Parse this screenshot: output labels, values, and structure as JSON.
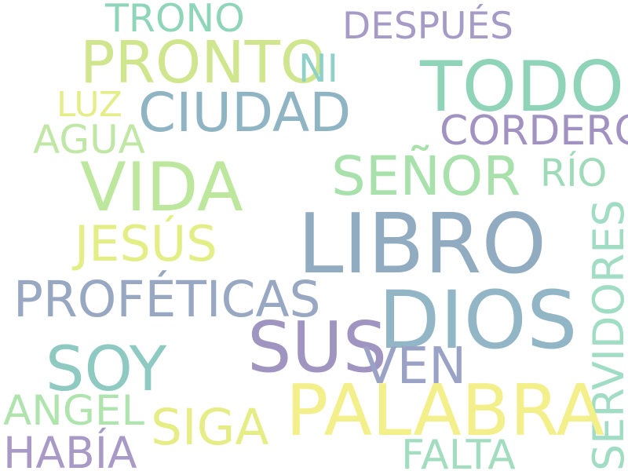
{
  "words": [
    {
      "id": "trono",
      "text": "TRONO",
      "color": "#8fd5b9"
    },
    {
      "id": "despues",
      "text": "DESPUÉS",
      "color": "#a59bc6"
    },
    {
      "id": "pronto",
      "text": "PRONTO",
      "color": "#d0e68e"
    },
    {
      "id": "ni",
      "text": "NI",
      "color": "#8fd0c9"
    },
    {
      "id": "todo",
      "text": "TODO",
      "color": "#8fd4b9"
    },
    {
      "id": "luz",
      "text": "LUZ",
      "color": "#e4ed88"
    },
    {
      "id": "ciudad",
      "text": "CIUDAD",
      "color": "#8fb4c4"
    },
    {
      "id": "cordero",
      "text": "CORDERO",
      "color": "#a292c1"
    },
    {
      "id": "agua",
      "text": "AGUA",
      "color": "#c0e7a5"
    },
    {
      "id": "vida",
      "text": "VIDA",
      "color": "#bce79d"
    },
    {
      "id": "senor",
      "text": "SEÑOR",
      "color": "#a9e1ad"
    },
    {
      "id": "rio",
      "text": "RÍO",
      "color": "#9fdab9"
    },
    {
      "id": "libro",
      "text": "LIBRO",
      "color": "#91abc0"
    },
    {
      "id": "jesus",
      "text": "JESÚS",
      "color": "#e4ee86"
    },
    {
      "id": "servidores",
      "text": "SERVIDORES",
      "color": "#a1ddc4"
    },
    {
      "id": "profeticas",
      "text": "PROFÉTICAS",
      "color": "#98a8c2"
    },
    {
      "id": "dios",
      "text": "DIOS",
      "color": "#92b6c5"
    },
    {
      "id": "sus",
      "text": "SUS",
      "color": "#a095c0"
    },
    {
      "id": "soy",
      "text": "SOY",
      "color": "#8ec9c2"
    },
    {
      "id": "ven",
      "text": "VEN",
      "color": "#9aa3c6"
    },
    {
      "id": "palabra",
      "text": "PALABRA",
      "color": "#f3ef8a"
    },
    {
      "id": "angel",
      "text": "ANGEL",
      "color": "#b0e4ae"
    },
    {
      "id": "siga",
      "text": "SIGA",
      "color": "#e6ed86"
    },
    {
      "id": "habia",
      "text": "HABÍA",
      "color": "#a899c6"
    },
    {
      "id": "falta",
      "text": "FALTA",
      "color": "#a2ddbf"
    }
  ]
}
